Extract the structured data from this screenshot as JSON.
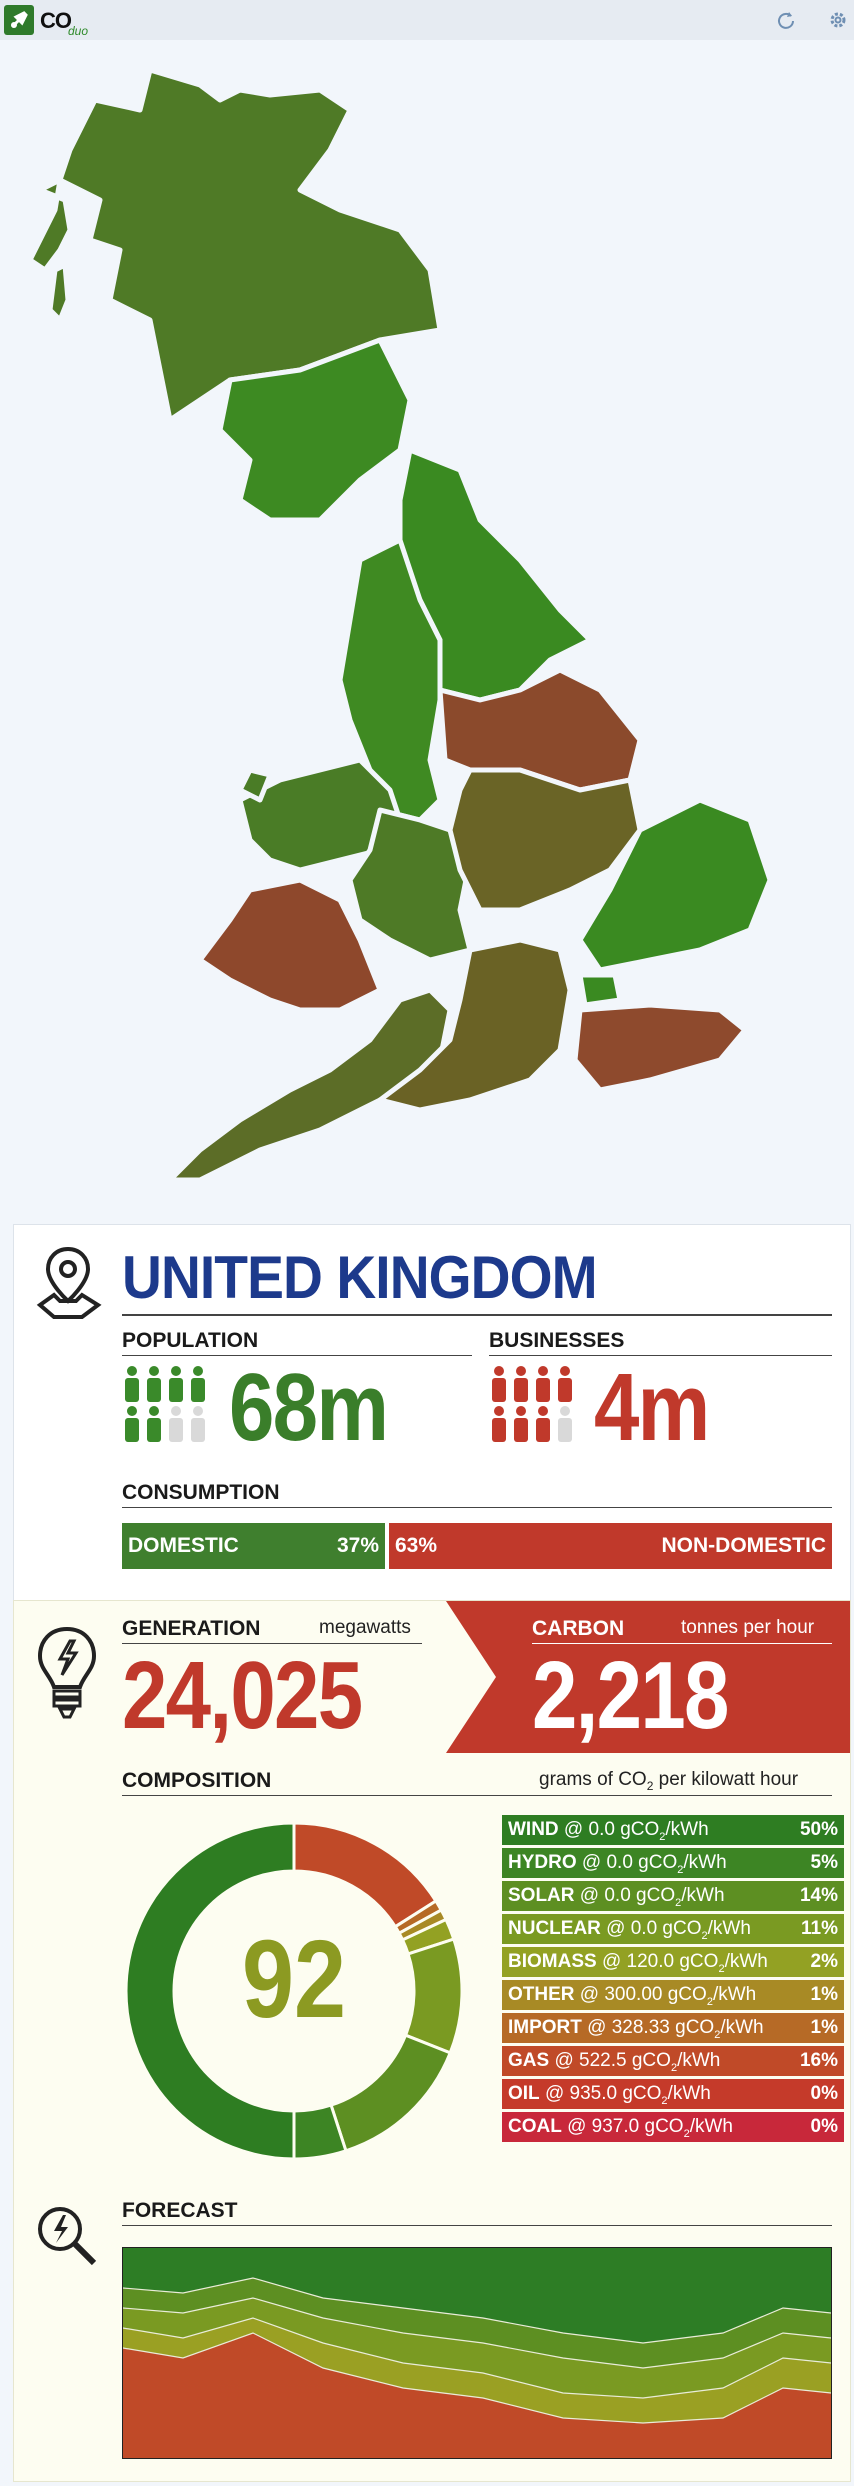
{
  "app": {
    "logo_text": "CO",
    "logo_sub": "duo",
    "refresh_icon": "refresh-icon",
    "settings_icon": "gear-icon"
  },
  "region": {
    "name": "UNITED KINGDOM",
    "population_label": "POPULATION",
    "population_value": "68m",
    "businesses_label": "BUSINESSES",
    "businesses_value": "4m",
    "consumption_label": "CONSUMPTION",
    "domestic_label": "DOMESTIC",
    "domestic_pct": "37%",
    "domestic_fraction": 0.37,
    "nondomestic_label": "NON-DOMESTIC",
    "nondomestic_pct": "63%"
  },
  "generation": {
    "label": "GENERATION",
    "unit": "megawatts",
    "value": "24,025"
  },
  "carbon": {
    "label": "CARBON",
    "unit": "tonnes per hour",
    "value": "2,218"
  },
  "composition": {
    "label": "COMPOSITION",
    "unit_prefix": "grams of CO",
    "unit_sub": "2",
    "unit_suffix": " per kilowatt hour",
    "intensity": "92",
    "rows": [
      {
        "name": "WIND",
        "rate": " @ 0.0 gCO",
        "rate_unit": "/kWh",
        "pct": "50%",
        "value": 50,
        "color": "#2e7d22"
      },
      {
        "name": "HYDRO",
        "rate": " @ 0.0 gCO",
        "rate_unit": "/kWh",
        "pct": "5%",
        "value": 5,
        "color": "#3d8524"
      },
      {
        "name": "SOLAR",
        "rate": " @ 0.0 gCO",
        "rate_unit": "/kWh",
        "pct": "14%",
        "value": 14,
        "color": "#5d8f22"
      },
      {
        "name": "NUCLEAR",
        "rate": " @ 0.0 gCO",
        "rate_unit": "/kWh",
        "pct": "11%",
        "value": 11,
        "color": "#7a9a22"
      },
      {
        "name": "BIOMASS",
        "rate": " @ 120.0 gCO",
        "rate_unit": "/kWh",
        "pct": "2%",
        "value": 2,
        "color": "#93a123"
      },
      {
        "name": "OTHER",
        "rate": " @ 300.00 gCO",
        "rate_unit": "/kWh",
        "pct": "1%",
        "value": 1,
        "color": "#a88a25"
      },
      {
        "name": "IMPORT",
        "rate": " @ 328.33 gCO",
        "rate_unit": "/kWh",
        "pct": "1%",
        "value": 1,
        "color": "#b66a26"
      },
      {
        "name": "GAS",
        "rate": " @ 522.5 gCO",
        "rate_unit": "/kWh",
        "pct": "16%",
        "value": 16,
        "color": "#c04a28"
      },
      {
        "name": "OIL",
        "rate": " @ 935.0 gCO",
        "rate_unit": "/kWh",
        "pct": "0%",
        "value": 0,
        "color": "#c53a2a"
      },
      {
        "name": "COAL",
        "rate": " @ 937.0 gCO",
        "rate_unit": "/kWh",
        "pct": "0%",
        "value": 0,
        "color": "#c8283a"
      }
    ]
  },
  "forecast": {
    "label": "FORECAST"
  }
}
